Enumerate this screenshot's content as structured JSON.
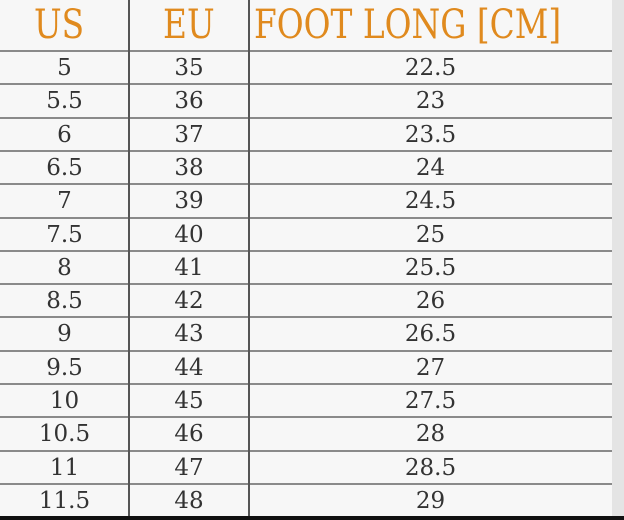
{
  "headers": {
    "us": "US",
    "eu": "EU",
    "foot": "FOOT LONG [CM]"
  },
  "header_color": "#e08a1e",
  "rows": [
    {
      "us": "5",
      "eu": "35",
      "cm": "22.5"
    },
    {
      "us": "5.5",
      "eu": "36",
      "cm": "23"
    },
    {
      "us": "6",
      "eu": "37",
      "cm": "23.5"
    },
    {
      "us": "6.5",
      "eu": "38",
      "cm": "24"
    },
    {
      "us": "7",
      "eu": "39",
      "cm": "24.5"
    },
    {
      "us": "7.5",
      "eu": "40",
      "cm": "25"
    },
    {
      "us": "8",
      "eu": "41",
      "cm": "25.5"
    },
    {
      "us": "8.5",
      "eu": "42",
      "cm": "26"
    },
    {
      "us": "9",
      "eu": "43",
      "cm": "26.5"
    },
    {
      "us": "9.5",
      "eu": "44",
      "cm": "27"
    },
    {
      "us": "10",
      "eu": "45",
      "cm": "27.5"
    },
    {
      "us": "10.5",
      "eu": "46",
      "cm": "28"
    },
    {
      "us": "11",
      "eu": "47",
      "cm": "28.5"
    },
    {
      "us": "11.5",
      "eu": "48",
      "cm": "29"
    }
  ]
}
